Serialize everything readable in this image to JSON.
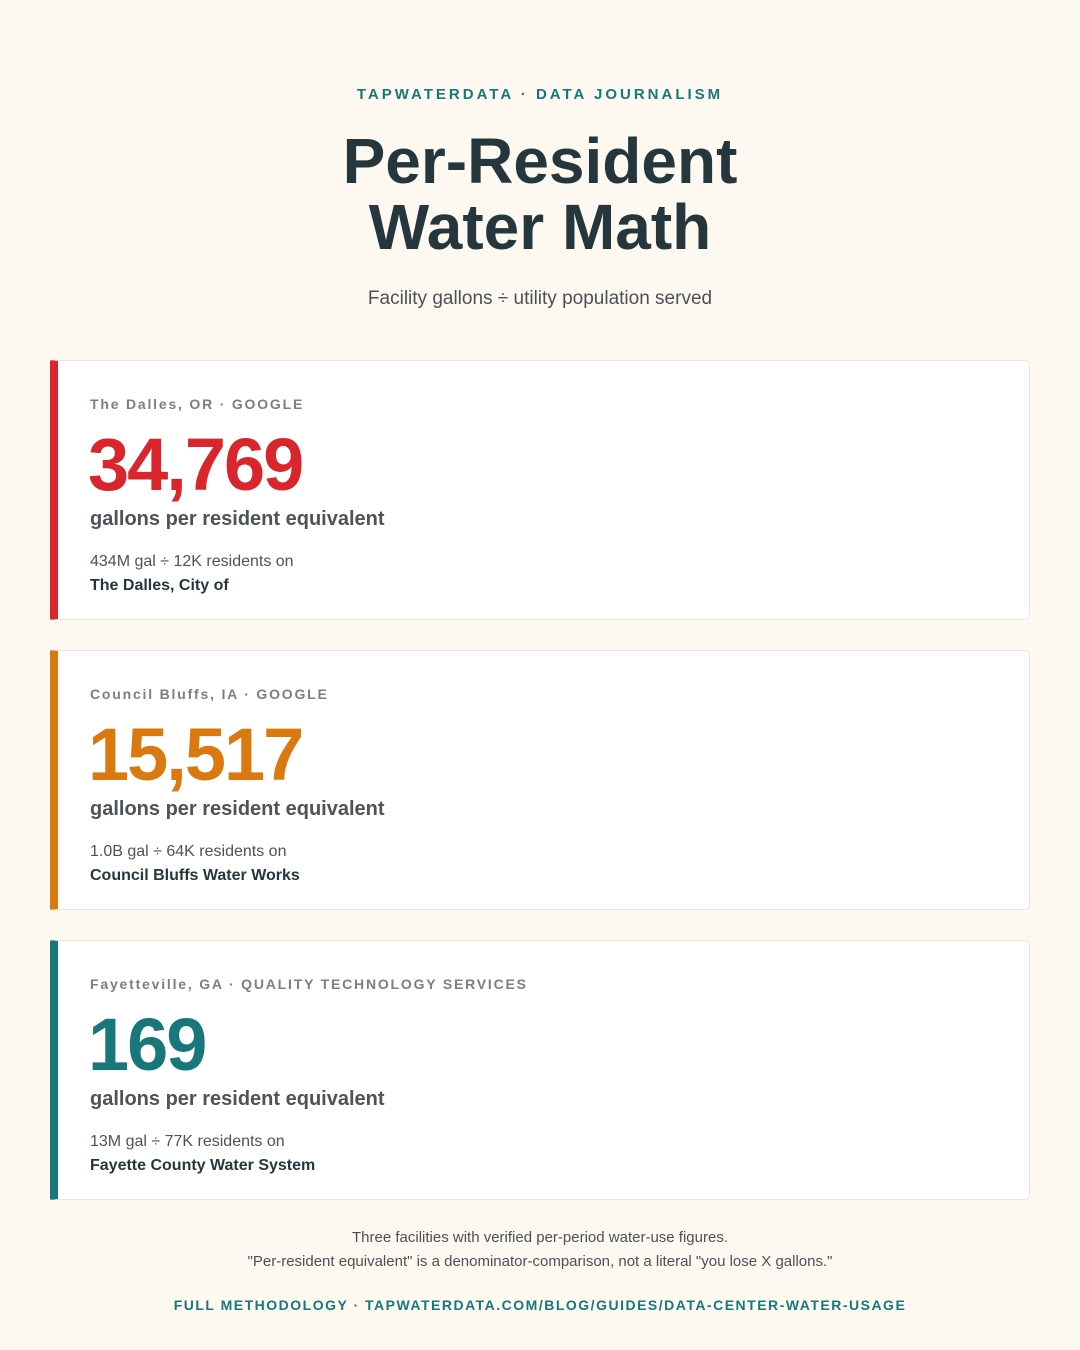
{
  "header": {
    "kicker": "TAPWATERDATA · DATA JOURNALISM",
    "title": "Per-Resident Water Math",
    "subtitle": "Facility gallons ÷ utility population served"
  },
  "colors": {
    "red": "#d9262c",
    "orange": "#d9790f",
    "teal": "#17777a"
  },
  "cards": [
    {
      "label": "The Dalles, OR · GOOGLE",
      "value": "34,769",
      "unit": "gallons per resident equivalent",
      "calc": "434M gal ÷ 12K residents on",
      "utility": "The Dalles, City of"
    },
    {
      "label": "Council Bluffs, IA · GOOGLE",
      "value": "15,517",
      "unit": "gallons per resident equivalent",
      "calc": "1.0B gal ÷ 64K residents on",
      "utility": "Council Bluffs Water Works"
    },
    {
      "label": "Fayetteville, GA · QUALITY TECHNOLOGY SERVICES",
      "value": "169",
      "unit": "gallons per resident equivalent",
      "calc": "13M gal ÷ 77K residents on",
      "utility": "Fayette County Water System"
    }
  ],
  "footer": {
    "note_line1": "Three facilities with verified per-period water-use figures.",
    "note_line2": "\"Per-resident equivalent\" is a denominator-comparison, not a literal \"you lose X gallons.\"",
    "methodology": "FULL METHODOLOGY · TAPWATERDATA.COM/BLOG/GUIDES/DATA-CENTER-WATER-USAGE"
  }
}
